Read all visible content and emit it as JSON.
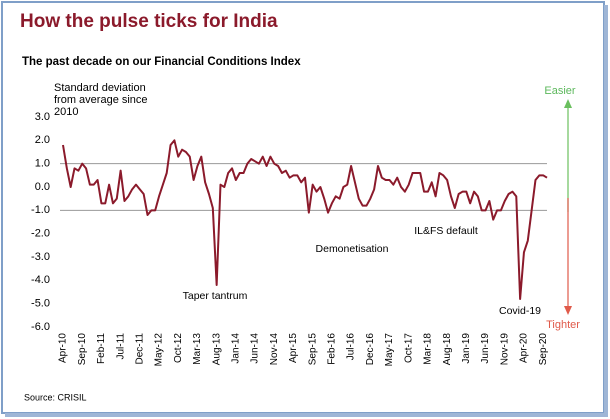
{
  "chart_data": {
    "type": "line",
    "title": "How the pulse ticks for India",
    "subtitle": "The past decade on our Financial Conditions Index",
    "y_label": "Standard deviation from average since 2010",
    "source": "Source: CRISIL",
    "easier_label": "Easier",
    "tighter_label": "Tighter",
    "annotations": [
      "Taper tantrum",
      "Demonetisation",
      "IL&FS default",
      "Covid-19"
    ],
    "categories": [
      "Apr-10",
      null,
      null,
      null,
      null,
      "Sep-10",
      null,
      null,
      null,
      null,
      "Feb-11",
      null,
      null,
      null,
      null,
      "Jul-11",
      null,
      null,
      null,
      null,
      "Dec-11",
      null,
      null,
      null,
      null,
      "May-12",
      null,
      null,
      null,
      null,
      "Oct-12",
      null,
      null,
      null,
      null,
      "Mar-13",
      null,
      null,
      null,
      null,
      "Aug-13",
      null,
      null,
      null,
      null,
      "Jan-14",
      null,
      null,
      null,
      null,
      "Jun-14",
      null,
      null,
      null,
      null,
      "Nov-14",
      null,
      null,
      null,
      null,
      "Apr-15",
      null,
      null,
      null,
      null,
      "Sep-15",
      null,
      null,
      null,
      null,
      "Feb-16",
      null,
      null,
      null,
      null,
      "Jul-16",
      null,
      null,
      null,
      null,
      "Dec-16",
      null,
      null,
      null,
      null,
      "May-17",
      null,
      null,
      null,
      null,
      "Oct-17",
      null,
      null,
      null,
      null,
      "Mar-18",
      null,
      null,
      null,
      null,
      "Aug-18",
      null,
      null,
      null,
      null,
      "Jan-19",
      null,
      null,
      null,
      null,
      "Jun-19",
      null,
      null,
      null,
      null,
      "Nov-19",
      null,
      null,
      null,
      null,
      "Apr-20",
      null,
      null,
      null,
      null,
      "Sep-20",
      null
    ],
    "values": [
      1.8,
      0.8,
      0.0,
      0.8,
      0.7,
      1.0,
      0.8,
      0.1,
      0.1,
      0.3,
      -0.7,
      -0.7,
      0.1,
      -0.7,
      -0.5,
      0.7,
      -0.6,
      -0.4,
      -0.1,
      0.1,
      -0.1,
      -0.3,
      -1.2,
      -1.0,
      -1.0,
      -0.4,
      0.1,
      0.6,
      1.8,
      2.0,
      1.3,
      1.6,
      1.5,
      1.3,
      0.3,
      0.9,
      1.3,
      0.2,
      -0.3,
      -0.9,
      -4.2,
      0.1,
      0.0,
      0.6,
      0.8,
      0.3,
      0.6,
      0.6,
      1.0,
      1.2,
      1.1,
      1.0,
      1.3,
      0.9,
      1.3,
      1.0,
      0.9,
      0.6,
      0.7,
      0.4,
      0.5,
      0.5,
      0.2,
      0.4,
      -1.1,
      0.1,
      -0.2,
      0.0,
      -0.5,
      -1.1,
      -0.7,
      -0.4,
      -0.5,
      0.0,
      0.1,
      0.9,
      0.2,
      -0.5,
      -0.8,
      -0.8,
      -0.5,
      -0.1,
      0.9,
      0.4,
      0.3,
      0.3,
      0.1,
      0.4,
      0.0,
      -0.2,
      0.1,
      0.6,
      0.6,
      0.6,
      -0.2,
      -0.2,
      0.2,
      -0.4,
      0.6,
      0.5,
      0.3,
      -0.4,
      -0.9,
      -0.3,
      -0.2,
      -0.2,
      -0.7,
      -0.2,
      -0.4,
      -1.0,
      -1.0,
      -0.6,
      -1.4,
      -1.0,
      -1.0,
      -0.6,
      -0.3,
      -0.2,
      -0.4,
      -4.8,
      -2.8,
      -2.3,
      -1.0,
      0.3,
      0.5,
      0.5,
      0.4
    ],
    "color": "#8b1a2b",
    "ylim": [
      -6,
      3
    ],
    "yticks": [
      {
        "value": 3,
        "label": "3.0"
      },
      {
        "value": 2,
        "label": "2.0"
      },
      {
        "value": 1,
        "label": "1.0"
      },
      {
        "value": 0,
        "label": "0.0"
      },
      {
        "value": -1,
        "label": "-1.0"
      },
      {
        "value": -2,
        "label": "-2.0"
      },
      {
        "value": -3,
        "label": "-3.0"
      },
      {
        "value": -4,
        "label": "-4.0"
      },
      {
        "value": -5,
        "label": "-5.0"
      },
      {
        "value": -6,
        "label": "-6.0"
      }
    ],
    "hlines": [
      1,
      -1
    ]
  }
}
